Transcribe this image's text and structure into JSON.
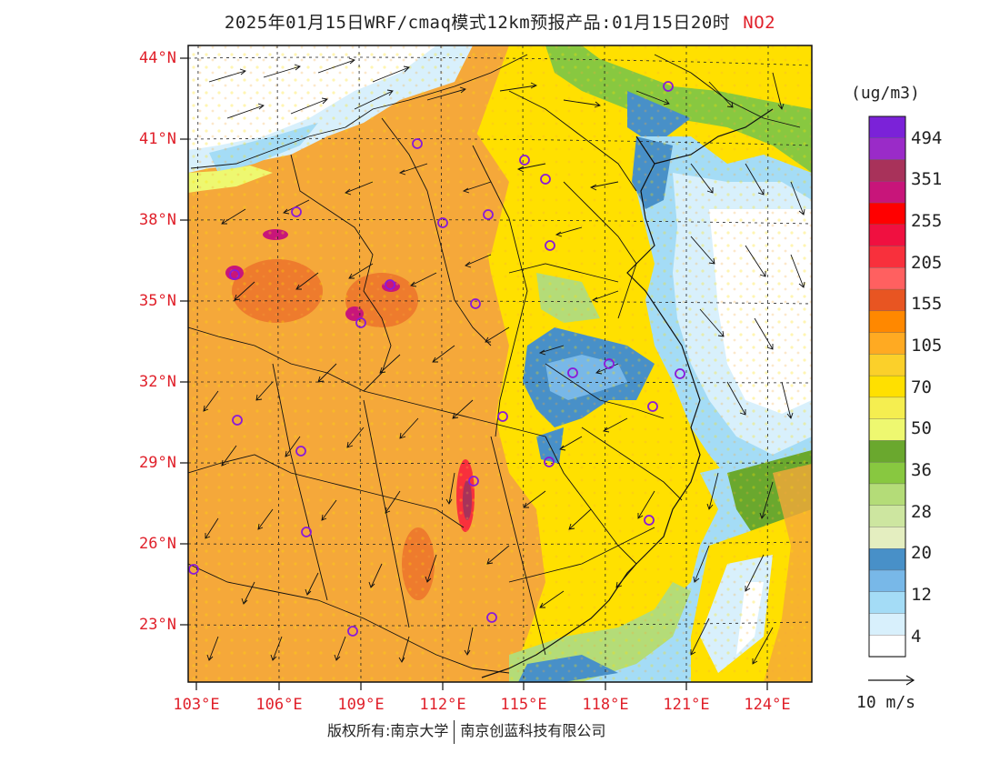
{
  "title": {
    "text": "2025年01月15日WRF/cmaq模式12km预报产品:01月15日20时",
    "pollutant": "NO2"
  },
  "axes": {
    "lat_labels": [
      "44°N",
      "41°N",
      "38°N",
      "35°N",
      "32°N",
      "29°N",
      "26°N",
      "23°N"
    ],
    "lon_labels": [
      "103°E",
      "106°E",
      "109°E",
      "112°E",
      "115°E",
      "118°E",
      "121°E",
      "124°E"
    ]
  },
  "legend": {
    "unit": "(ug/m3)",
    "labels": [
      "494",
      "351",
      "255",
      "205",
      "155",
      "105",
      "70",
      "50",
      "36",
      "28",
      "20",
      "12",
      "4"
    ],
    "colors": [
      "#7b22d8",
      "#9a2bc8",
      "#a8325a",
      "#c8157a",
      "#ff0000",
      "#f01040",
      "#f8303c",
      "#ff6060",
      "#e85522",
      "#ff8800",
      "#ffaa22",
      "#fbd02a",
      "#ffe000",
      "#f5ee50",
      "#eef870",
      "#6aa82e",
      "#88c840",
      "#b4dc78",
      "#cde6a0",
      "#e4eec0",
      "#4890c8",
      "#78b8e8",
      "#a4dcf6",
      "#d8f0fc",
      "#ffffff"
    ],
    "reference_vector": "10 m/s"
  },
  "copyright": {
    "left": "版权所有:南京大学",
    "right": "南京创蓝科技有限公司"
  },
  "icons": [
    "station-circle-icon",
    "wind-arrow-icon"
  ]
}
